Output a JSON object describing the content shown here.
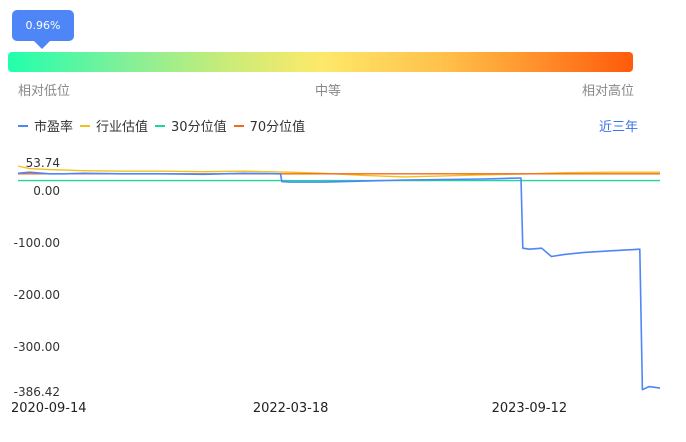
{
  "percentile": {
    "tooltip": "0.96%",
    "value": 0.0096,
    "low_label": "相对低位",
    "mid_label": "中等",
    "high_label": "相对高位"
  },
  "legend": {
    "items": [
      {
        "key": "pe",
        "label": "市盈率",
        "color": "#4f86f7"
      },
      {
        "key": "industry",
        "label": "行业估值",
        "color": "#f2c21b"
      },
      {
        "key": "p30",
        "label": "30分位值",
        "color": "#1fd69a"
      },
      {
        "key": "p70",
        "label": "70分位值",
        "color": "#f26a1b"
      }
    ]
  },
  "range_button": "近三年",
  "chart_data": {
    "type": "line",
    "ylim": [
      -386.42,
      53.74
    ],
    "yticks": [
      "53.74",
      "0.00",
      "-100.00",
      "-200.00",
      "-300.00",
      "-386.42"
    ],
    "ytick_values": [
      53.74,
      0,
      -100,
      -200,
      -300,
      -386.42
    ],
    "xticks": [
      "2020-09-14",
      "2022-03-18",
      "2023-09-12"
    ],
    "x_range": [
      "2020-07-06",
      "2024-07-05"
    ],
    "series": [
      {
        "name": "市盈率",
        "color": "#4f86f7",
        "points": [
          [
            "2020-07-06",
            34
          ],
          [
            "2020-08-01",
            36
          ],
          [
            "2020-09-14",
            33
          ],
          [
            "2020-10-20",
            33
          ],
          [
            "2020-12-01",
            34
          ],
          [
            "2021-03-01",
            33
          ],
          [
            "2021-06-01",
            33
          ],
          [
            "2021-09-01",
            32
          ],
          [
            "2021-12-01",
            34
          ],
          [
            "2022-02-23",
            33
          ],
          [
            "2022-02-26",
            18
          ],
          [
            "2022-03-18",
            17
          ],
          [
            "2022-06-01",
            17
          ],
          [
            "2022-09-01",
            19
          ],
          [
            "2022-12-01",
            21
          ],
          [
            "2023-03-01",
            22
          ],
          [
            "2023-06-01",
            23
          ],
          [
            "2023-08-24",
            25
          ],
          [
            "2023-08-28",
            -110
          ],
          [
            "2023-09-12",
            -112
          ],
          [
            "2023-10-10",
            -110
          ],
          [
            "2023-11-01",
            -126
          ],
          [
            "2023-12-01",
            -122
          ],
          [
            "2024-01-15",
            -118
          ],
          [
            "2024-03-15",
            -115
          ],
          [
            "2024-05-20",
            -112
          ],
          [
            "2024-05-26",
            -382
          ],
          [
            "2024-06-10",
            -376
          ],
          [
            "2024-07-05",
            -379
          ]
        ]
      },
      {
        "name": "行业估值",
        "color": "#f2c21b",
        "points": [
          [
            "2020-07-06",
            48
          ],
          [
            "2020-08-01",
            43
          ],
          [
            "2020-09-14",
            41
          ],
          [
            "2020-10-20",
            40
          ],
          [
            "2020-12-01",
            39
          ],
          [
            "2021-03-01",
            38
          ],
          [
            "2021-06-01",
            38
          ],
          [
            "2021-09-01",
            37
          ],
          [
            "2021-12-01",
            38
          ],
          [
            "2022-03-18",
            36
          ],
          [
            "2022-06-01",
            34
          ],
          [
            "2022-09-01",
            30
          ],
          [
            "2022-12-01",
            27
          ],
          [
            "2023-03-01",
            29
          ],
          [
            "2023-06-01",
            31
          ],
          [
            "2023-09-12",
            33
          ],
          [
            "2023-12-01",
            35
          ],
          [
            "2024-03-15",
            36
          ],
          [
            "2024-07-05",
            36
          ]
        ]
      },
      {
        "name": "30分位值",
        "color": "#1fd69a",
        "points": [
          [
            "2020-07-06",
            20
          ],
          [
            "2024-07-05",
            20
          ]
        ]
      },
      {
        "name": "70分位值",
        "color": "#f26a1b",
        "points": [
          [
            "2020-07-06",
            33
          ],
          [
            "2024-07-05",
            33
          ]
        ]
      }
    ]
  }
}
